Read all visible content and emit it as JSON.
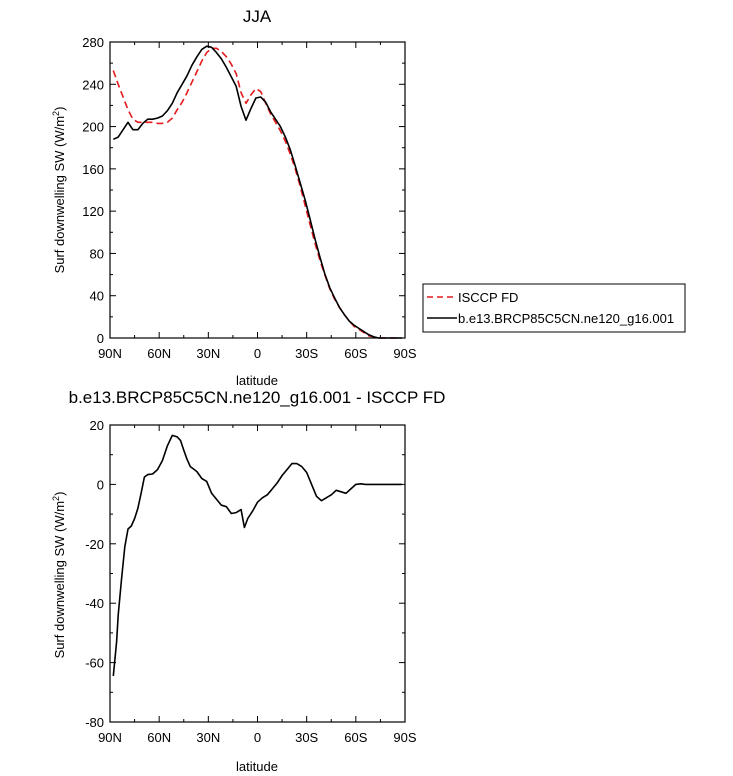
{
  "chart_data": [
    {
      "type": "line",
      "title": "JJA",
      "xlabel": "latitude",
      "ylabel": "Surf downwelling SW (W/m",
      "ylabel_sup": "2",
      "ylabel_close": ")",
      "xlim": [
        -90,
        90
      ],
      "ylim": [
        0,
        280
      ],
      "grid": false,
      "legend_position": "right",
      "xticks": [
        -90,
        -60,
        -30,
        0,
        30,
        60,
        90
      ],
      "xticklabels": [
        "90N",
        "60N",
        "30N",
        "0",
        "30S",
        "60S",
        "90S"
      ],
      "yticks": [
        0,
        40,
        80,
        120,
        160,
        200,
        240,
        280
      ],
      "yticklabels": [
        "0",
        "40",
        "80",
        "120",
        "160",
        "200",
        "240",
        "280"
      ],
      "series": [
        {
          "name": "ISCCP FD",
          "color": "#e41a1c",
          "dash": "dashed",
          "x": [
            -88,
            -85,
            -82,
            -79,
            -76,
            -73,
            -70,
            -67,
            -64,
            -61,
            -58,
            -55,
            -52,
            -49,
            -46,
            -43,
            -40,
            -37,
            -34,
            -31,
            -28,
            -25,
            -22,
            -19,
            -16,
            -13,
            -10,
            -7,
            -4,
            -1,
            2,
            5,
            8,
            11,
            14,
            17,
            20,
            23,
            26,
            29,
            32,
            35,
            38,
            41,
            44,
            47,
            50,
            53,
            56,
            59,
            62,
            65,
            68,
            71,
            74,
            77,
            80,
            83,
            86,
            88
          ],
          "values": [
            253,
            240,
            228,
            216,
            207,
            204,
            204,
            204,
            204,
            203,
            203,
            204,
            208,
            216,
            223,
            232,
            242,
            252,
            262,
            270,
            274,
            274,
            271,
            266,
            259,
            250,
            232,
            222,
            230,
            236,
            233,
            222,
            212,
            204,
            196,
            186,
            174,
            160,
            144,
            126,
            108,
            90,
            74,
            60,
            47,
            37,
            29,
            22,
            16,
            11,
            8,
            5,
            2,
            1,
            0,
            0,
            0,
            0,
            0,
            0
          ]
        },
        {
          "name": "b.e13.BRCP85C5CN.ne120_g16.001",
          "color": "#000000",
          "dash": "solid",
          "x": [
            -88,
            -85,
            -82,
            -79,
            -76,
            -73,
            -70,
            -67,
            -64,
            -61,
            -58,
            -55,
            -52,
            -49,
            -46,
            -43,
            -40,
            -37,
            -34,
            -31,
            -28,
            -25,
            -22,
            -19,
            -16,
            -13,
            -10,
            -7,
            -4,
            -1,
            2,
            5,
            8,
            11,
            14,
            17,
            20,
            23,
            26,
            29,
            32,
            35,
            38,
            41,
            44,
            47,
            50,
            53,
            56,
            59,
            62,
            65,
            68,
            71,
            74,
            77,
            80,
            83,
            86,
            88
          ],
          "values": [
            188,
            190,
            197,
            204,
            197,
            197,
            203,
            207,
            207,
            208,
            210,
            215,
            222,
            232,
            240,
            248,
            258,
            266,
            273,
            276,
            275,
            270,
            264,
            256,
            247,
            238,
            219,
            206,
            217,
            227,
            228,
            223,
            214,
            207,
            200,
            190,
            178,
            163,
            147,
            131,
            113,
            94,
            77,
            61,
            48,
            38,
            29,
            22,
            16,
            12,
            9,
            6,
            3,
            1,
            0,
            0,
            0,
            0,
            0,
            0
          ]
        }
      ]
    },
    {
      "type": "line",
      "title": "b.e13.BRCP85C5CN.ne120_g16.001 - ISCCP FD",
      "xlabel": "latitude",
      "ylabel": "Surf downwelling SW (W/m",
      "ylabel_sup": "2",
      "ylabel_close": ")",
      "xlim": [
        -90,
        90
      ],
      "ylim": [
        -80,
        20
      ],
      "grid": false,
      "xticks": [
        -90,
        -60,
        -30,
        0,
        30,
        60,
        90
      ],
      "xticklabels": [
        "90N",
        "60N",
        "30N",
        "0",
        "30S",
        "60S",
        "90S"
      ],
      "yticks": [
        -80,
        -60,
        -40,
        -20,
        0,
        20
      ],
      "yticklabels": [
        "-80",
        "-60",
        "-40",
        "-20",
        "0",
        "20"
      ],
      "series": [
        {
          "color": "#000000",
          "dash": "solid",
          "x": [
            -88,
            -86,
            -85,
            -83,
            -81,
            -79,
            -77,
            -75,
            -73,
            -71,
            -69,
            -67,
            -64,
            -61,
            -58,
            -55,
            -52,
            -49,
            -47,
            -45,
            -43,
            -41,
            -39,
            -37,
            -34,
            -31,
            -28,
            -25,
            -22,
            -19,
            -16,
            -13,
            -10,
            -8,
            -6,
            -3,
            0,
            3,
            6,
            9,
            12,
            15,
            18,
            21,
            24,
            27,
            30,
            33,
            36,
            39,
            42,
            45,
            48,
            51,
            54,
            57,
            60,
            63,
            66,
            69,
            72,
            75,
            80,
            85,
            88
          ],
          "values": [
            -64.5,
            -53,
            -44,
            -32,
            -21,
            -15,
            -14,
            -11.5,
            -8,
            -3,
            2.5,
            3.3,
            3.5,
            5,
            8,
            13,
            16.5,
            16,
            14.8,
            11.5,
            8.5,
            6,
            5.2,
            4.3,
            2,
            1,
            -3,
            -5,
            -7,
            -7.5,
            -9.8,
            -9.5,
            -8.5,
            -14.5,
            -11.5,
            -9,
            -6,
            -4.5,
            -3.5,
            -1.5,
            0.5,
            3,
            5,
            7,
            7,
            6,
            4,
            0,
            -4,
            -5.5,
            -4.5,
            -3.5,
            -2,
            -2.5,
            -3,
            -1.5,
            0,
            0.2,
            0,
            0,
            0,
            0,
            0,
            0,
            0
          ]
        }
      ]
    }
  ]
}
